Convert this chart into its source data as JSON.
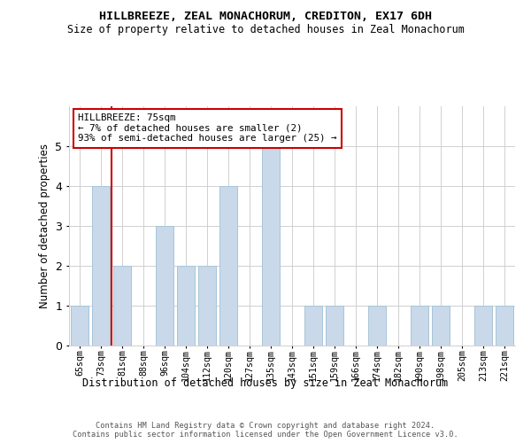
{
  "title": "HILLBREEZE, ZEAL MONACHORUM, CREDITON, EX17 6DH",
  "subtitle": "Size of property relative to detached houses in Zeal Monachorum",
  "xlabel": "Distribution of detached houses by size in Zeal Monachorum",
  "ylabel": "Number of detached properties",
  "categories": [
    "65sqm",
    "73sqm",
    "81sqm",
    "88sqm",
    "96sqm",
    "104sqm",
    "112sqm",
    "120sqm",
    "127sqm",
    "135sqm",
    "143sqm",
    "151sqm",
    "159sqm",
    "166sqm",
    "174sqm",
    "182sqm",
    "190sqm",
    "198sqm",
    "205sqm",
    "213sqm",
    "221sqm"
  ],
  "values": [
    1,
    4,
    2,
    0,
    3,
    2,
    2,
    4,
    0,
    5,
    0,
    1,
    1,
    0,
    1,
    0,
    1,
    1,
    0,
    1,
    1
  ],
  "bar_color": "#c9d9ea",
  "bar_edge_color": "#a8c4d8",
  "ylim": [
    0,
    6
  ],
  "yticks": [
    0,
    1,
    2,
    3,
    4,
    5
  ],
  "vline_x_index": 1,
  "vline_color": "#cc0000",
  "annotation_text": "HILLBREEZE: 75sqm\n← 7% of detached houses are smaller (2)\n93% of semi-detached houses are larger (25) →",
  "annotation_box_color": "#ffffff",
  "annotation_box_edge": "#cc0000",
  "footer_line1": "Contains HM Land Registry data © Crown copyright and database right 2024.",
  "footer_line2": "Contains public sector information licensed under the Open Government Licence v3.0.",
  "background_color": "#ffffff",
  "grid_color": "#d0d0d0"
}
